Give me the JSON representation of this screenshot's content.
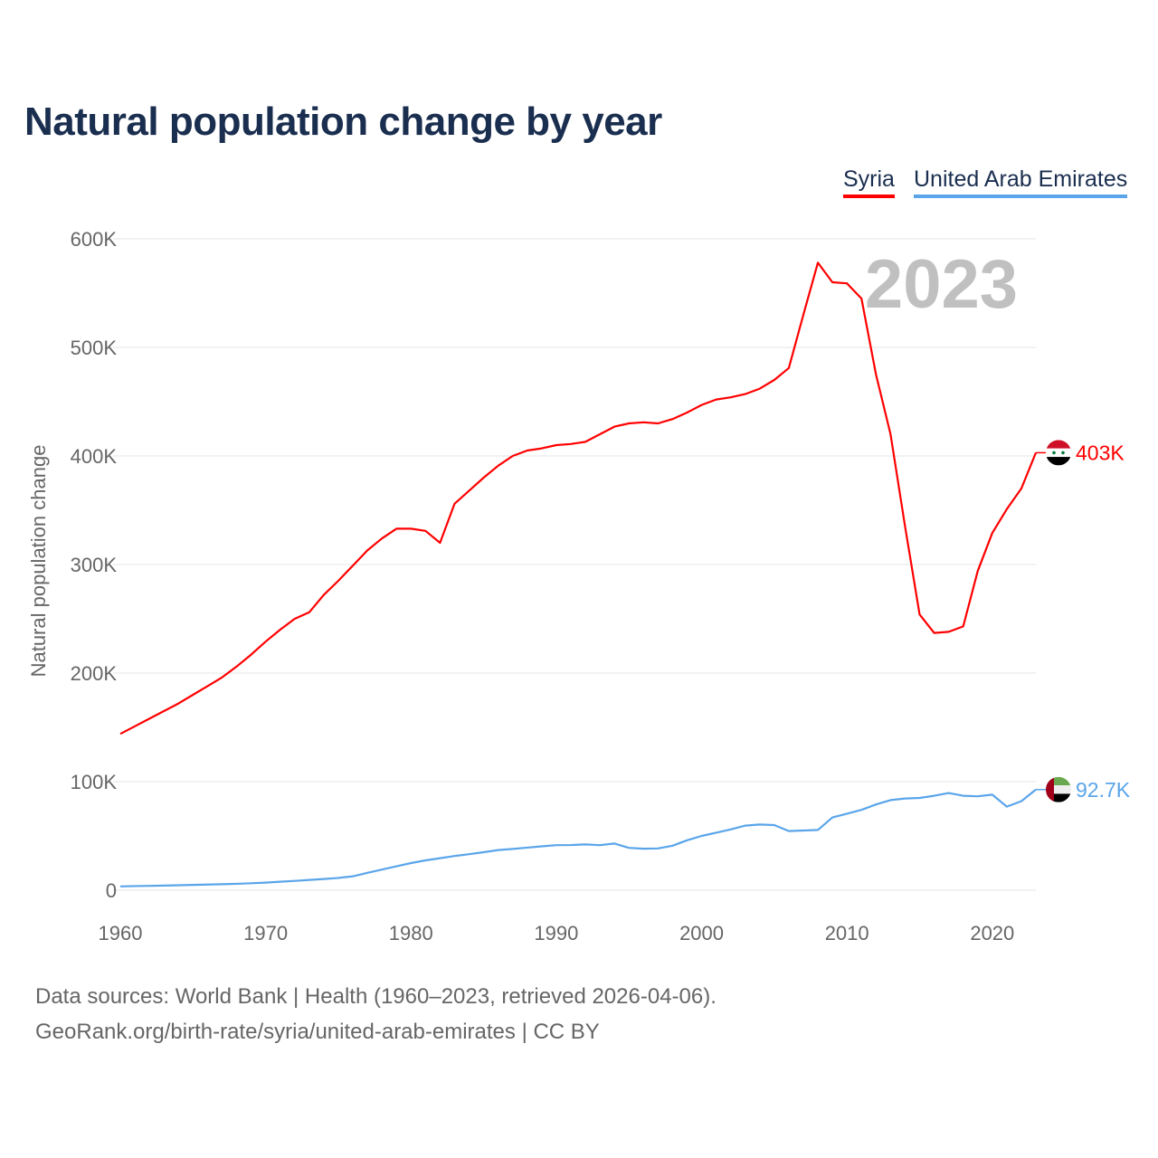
{
  "chart_data": {
    "type": "line",
    "title": "Natural population change by year",
    "xlabel": "",
    "ylabel": "Natural population change",
    "xlim": [
      1960,
      2023
    ],
    "ylim": [
      0,
      600000
    ],
    "x_ticks": [
      "1960",
      "1970",
      "1980",
      "1990",
      "2000",
      "2010",
      "2020"
    ],
    "y_ticks": [
      {
        "v": 0,
        "label": "0"
      },
      {
        "v": 100000,
        "label": "100K"
      },
      {
        "v": 200000,
        "label": "200K"
      },
      {
        "v": 300000,
        "label": "300K"
      },
      {
        "v": 400000,
        "label": "400K"
      },
      {
        "v": 500000,
        "label": "500K"
      },
      {
        "v": 600000,
        "label": "600K"
      }
    ],
    "grid": true,
    "legend_placement": "top-right",
    "year_watermark": "2023",
    "x": [
      1960,
      1961,
      1962,
      1963,
      1964,
      1965,
      1966,
      1967,
      1968,
      1969,
      1970,
      1971,
      1972,
      1973,
      1974,
      1975,
      1976,
      1977,
      1978,
      1979,
      1980,
      1981,
      1982,
      1983,
      1984,
      1985,
      1986,
      1987,
      1988,
      1989,
      1990,
      1991,
      1992,
      1993,
      1994,
      1995,
      1996,
      1997,
      1998,
      1999,
      2000,
      2001,
      2002,
      2003,
      2004,
      2005,
      2006,
      2007,
      2008,
      2009,
      2010,
      2011,
      2012,
      2013,
      2014,
      2015,
      2016,
      2017,
      2018,
      2019,
      2020,
      2021,
      2022,
      2023
    ],
    "series": [
      {
        "name": "Syria",
        "color": "#ff0000",
        "end_label": "403K",
        "flag": "syria-flag",
        "values": [
          144000,
          151000,
          158000,
          165000,
          172000,
          180000,
          188000,
          196000,
          206000,
          217000,
          229000,
          240000,
          250000,
          256000,
          272000,
          285000,
          299000,
          313000,
          324000,
          333000,
          333000,
          331000,
          320000,
          356000,
          368000,
          380000,
          391000,
          400000,
          405000,
          407000,
          410000,
          411000,
          413000,
          420000,
          427000,
          430000,
          431000,
          430000,
          434000,
          440000,
          447000,
          452000,
          454000,
          457000,
          462000,
          470000,
          481000,
          530000,
          578000,
          560000,
          559000,
          545000,
          475000,
          420000,
          335000,
          254000,
          237000,
          238000,
          243000,
          294000,
          329000,
          351000,
          370000,
          403000
        ]
      },
      {
        "name": "United Arab Emirates",
        "color": "#5aa5ea",
        "end_label": "92.7K",
        "flag": "uae-flag",
        "values": [
          3500,
          3800,
          4000,
          4300,
          4600,
          4900,
          5200,
          5500,
          5900,
          6400,
          7000,
          7800,
          8600,
          9500,
          10300,
          11300,
          12800,
          16000,
          19000,
          22000,
          25000,
          27500,
          29500,
          31500,
          33200,
          35000,
          37000,
          38000,
          39200,
          40400,
          41500,
          41600,
          42200,
          41500,
          43000,
          39000,
          38200,
          38500,
          41000,
          46000,
          50000,
          53000,
          56000,
          59500,
          60500,
          60000,
          54500,
          55000,
          55500,
          67000,
          70500,
          74000,
          79000,
          83000,
          84500,
          85000,
          87000,
          89500,
          87000,
          86500,
          88000,
          77000,
          82000,
          92700
        ]
      }
    ]
  },
  "footer": {
    "line1": "Data sources: World Bank | Health (1960–2023, retrieved 2026-04-06).",
    "line2": "GeoRank.org/birth-rate/syria/united-arab-emirates | CC BY"
  }
}
